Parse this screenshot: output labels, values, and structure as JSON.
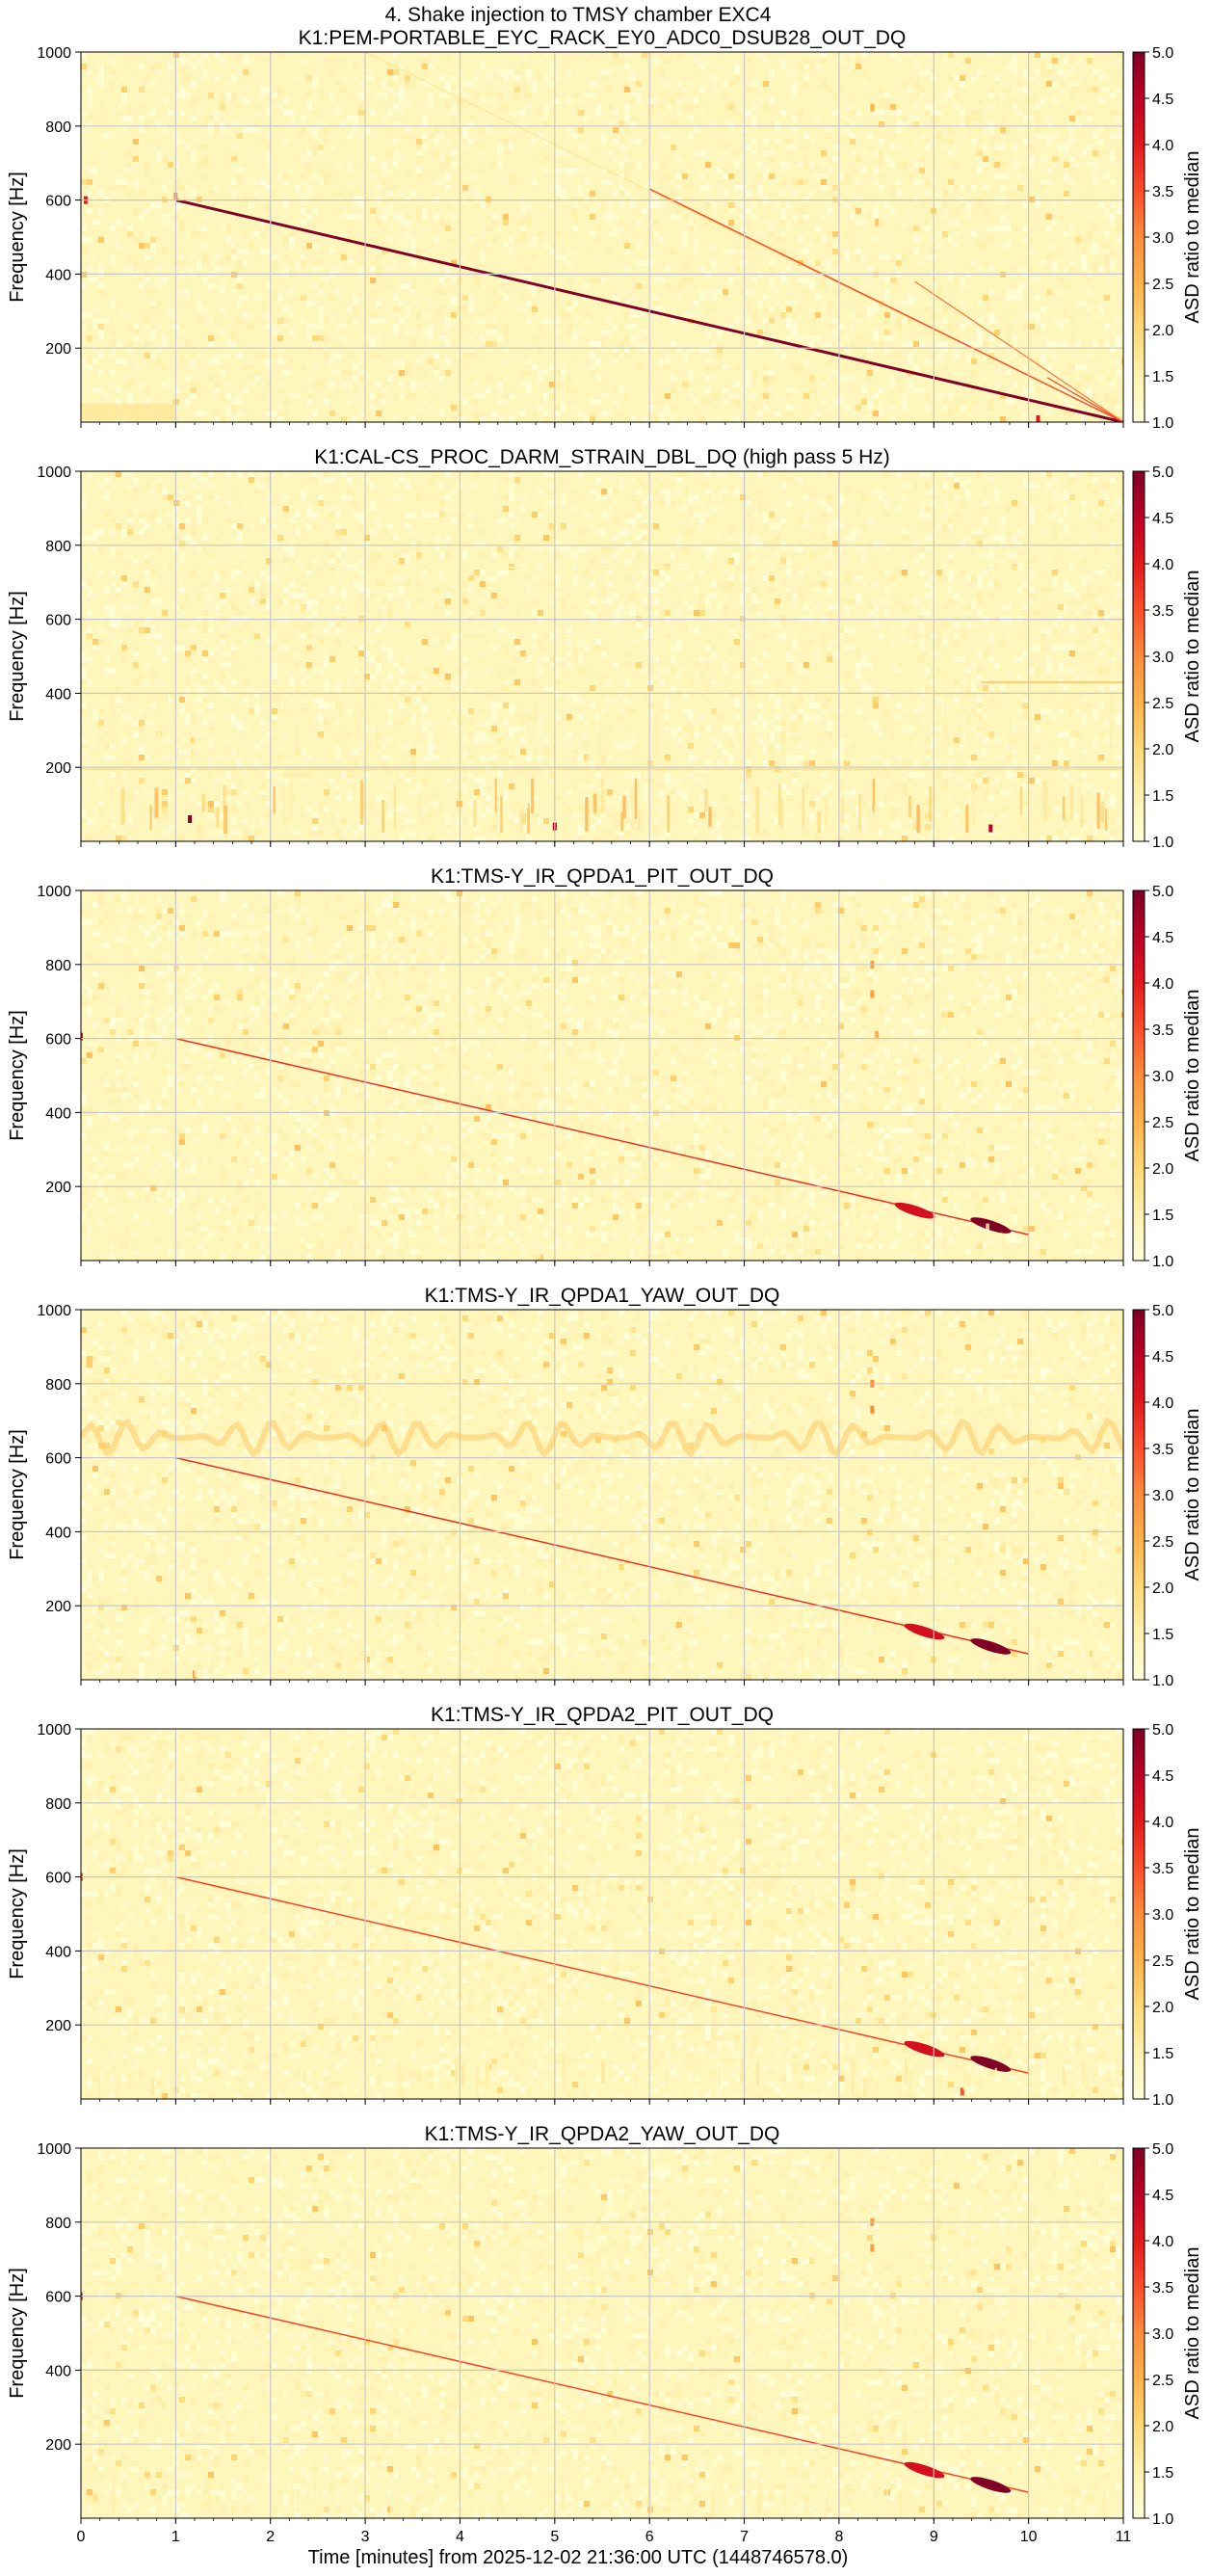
{
  "figure": {
    "suptitle": "4. Shake injection to TMSY chamber EXC4",
    "xlabel": "Time [minutes] from 2025-12-02 21:36:00 UTC (1448746578.0)"
  },
  "chart_data": [
    {
      "type": "heatmap",
      "title": "K1:PEM-PORTABLE_EYC_RACK_EY0_ADC0_DSUB28_OUT_DQ",
      "xlabel": "Time [minutes] from 2025-12-02 21:36:00 UTC (1448746578.0)",
      "ylabel": "Frequency [Hz]",
      "colorbar_label": "ASD ratio to median",
      "xlim": [
        0,
        11
      ],
      "ylim": [
        0,
        1000
      ],
      "clim": [
        1.0,
        5.0
      ],
      "xticks": [
        0,
        1,
        2,
        3,
        4,
        5,
        6,
        7,
        8,
        9,
        10,
        11
      ],
      "yticks": [
        200,
        400,
        600,
        800,
        1000
      ],
      "cticks": [
        "1.0",
        "1.5",
        "2.0",
        "2.5",
        "3.0",
        "3.5",
        "4.0",
        "4.5",
        "5.0"
      ],
      "grid": true,
      "colormap": [
        "#ffffd9",
        "#fff2b0",
        "#fed976",
        "#feb24c",
        "#fd8d3c",
        "#fc4e2a",
        "#e31a1c",
        "#bd0026",
        "#800026"
      ],
      "features": [
        {
          "kind": "sweep",
          "t": [
            1.0,
            11.0
          ],
          "f": [
            600,
            0
          ],
          "intensity": 5.0,
          "width": 3
        },
        {
          "kind": "sweep",
          "t": [
            3.0,
            11.0
          ],
          "f": [
            1000,
            0
          ],
          "intensity": 1.8,
          "width": 1
        },
        {
          "kind": "sweep",
          "t": [
            6.0,
            11.0
          ],
          "f": [
            630,
            0
          ],
          "intensity": 3.5,
          "width": 1.5
        },
        {
          "kind": "sweep",
          "t": [
            8.8,
            11.0
          ],
          "f": [
            380,
            0
          ],
          "intensity": 3.2,
          "width": 1.2
        },
        {
          "kind": "sweep",
          "t": [
            10.2,
            11.0
          ],
          "f": [
            120,
            0
          ],
          "intensity": 3.5,
          "width": 1.2
        },
        {
          "kind": "band",
          "t": [
            0.0,
            1.0
          ],
          "f": [
            5,
            50
          ],
          "intensity": 1.7
        },
        {
          "kind": "spot",
          "t": 0.05,
          "f": 600,
          "intensity": 4.0
        },
        {
          "kind": "spot",
          "t": 1.0,
          "f": 610,
          "intensity": 3.0
        },
        {
          "kind": "spot",
          "t": 8.35,
          "f": 850,
          "intensity": 2.5
        },
        {
          "kind": "spot",
          "t": 8.4,
          "f": 540,
          "intensity": 2.2
        },
        {
          "kind": "spot",
          "t": 10.1,
          "f": 8,
          "intensity": 4.0
        }
      ]
    },
    {
      "type": "heatmap",
      "title": "K1:CAL-CS_PROC_DARM_STRAIN_DBL_DQ (high pass 5 Hz)",
      "xlabel": "Time [minutes] from 2025-12-02 21:36:00 UTC (1448746578.0)",
      "ylabel": "Frequency [Hz]",
      "colorbar_label": "ASD ratio to median",
      "xlim": [
        0,
        11
      ],
      "ylim": [
        0,
        1000
      ],
      "clim": [
        1.0,
        5.0
      ],
      "xticks": [
        0,
        1,
        2,
        3,
        4,
        5,
        6,
        7,
        8,
        9,
        10,
        11
      ],
      "yticks": [
        200,
        400,
        600,
        800,
        1000
      ],
      "cticks": [
        "1.0",
        "1.5",
        "2.0",
        "2.5",
        "3.0",
        "3.5",
        "4.0",
        "4.5",
        "5.0"
      ],
      "grid": true,
      "colormap": [
        "#ffffd9",
        "#fff2b0",
        "#fed976",
        "#feb24c",
        "#fd8d3c",
        "#fc4e2a",
        "#e31a1c",
        "#bd0026",
        "#800026"
      ],
      "features": [
        {
          "kind": "hline",
          "t": [
            0.0,
            11.0
          ],
          "f": 195,
          "intensity": 1.9
        },
        {
          "kind": "hline",
          "t": [
            0.0,
            11.0
          ],
          "f": 400,
          "intensity": 1.6
        },
        {
          "kind": "hline",
          "t": [
            0.0,
            11.0
          ],
          "f": 740,
          "intensity": 1.4
        },
        {
          "kind": "hline",
          "t": [
            9.5,
            11.0
          ],
          "f": 430,
          "intensity": 2.3
        },
        {
          "kind": "stripes",
          "t": [
            0.0,
            11.0
          ],
          "f": [
            20,
            170
          ],
          "intensity": 2.6,
          "count": 70
        },
        {
          "kind": "stripes",
          "t": [
            0.0,
            11.0
          ],
          "f": [
            200,
            400
          ],
          "intensity": 1.5,
          "count": 40
        },
        {
          "kind": "spot",
          "t": 1.15,
          "f": 60,
          "intensity": 5.0
        },
        {
          "kind": "spot",
          "t": 5.0,
          "f": 40,
          "intensity": 4.5
        },
        {
          "kind": "spot",
          "t": 9.6,
          "f": 35,
          "intensity": 4.5
        }
      ]
    },
    {
      "type": "heatmap",
      "title": "K1:TMS-Y_IR_QPDA1_PIT_OUT_DQ",
      "xlabel": "Time [minutes] from 2025-12-02 21:36:00 UTC (1448746578.0)",
      "ylabel": "Frequency [Hz]",
      "colorbar_label": "ASD ratio to median",
      "xlim": [
        0,
        11
      ],
      "ylim": [
        0,
        1000
      ],
      "clim": [
        1.0,
        5.0
      ],
      "xticks": [
        0,
        1,
        2,
        3,
        4,
        5,
        6,
        7,
        8,
        9,
        10,
        11
      ],
      "yticks": [
        200,
        400,
        600,
        800,
        1000
      ],
      "cticks": [
        "1.0",
        "1.5",
        "2.0",
        "2.5",
        "3.0",
        "3.5",
        "4.0",
        "4.5",
        "5.0"
      ],
      "grid": true,
      "colormap": [
        "#ffffd9",
        "#fff2b0",
        "#fed976",
        "#feb24c",
        "#fd8d3c",
        "#fc4e2a",
        "#e31a1c",
        "#bd0026",
        "#800026"
      ],
      "features": [
        {
          "kind": "sweep",
          "t": [
            1.0,
            10.0
          ],
          "f": [
            600,
            70
          ],
          "intensity": 3.8,
          "width": 1.5
        },
        {
          "kind": "blob",
          "t": 9.6,
          "f": 95,
          "intensity": 5.0
        },
        {
          "kind": "blob",
          "t": 8.8,
          "f": 135,
          "intensity": 4.2
        },
        {
          "kind": "spot",
          "t": 0.0,
          "f": 605,
          "intensity": 4.0
        },
        {
          "kind": "spot",
          "t": 8.35,
          "f": 800,
          "intensity": 2.8
        },
        {
          "kind": "spot",
          "t": 8.35,
          "f": 720,
          "intensity": 2.8
        },
        {
          "kind": "spot",
          "t": 8.4,
          "f": 610,
          "intensity": 2.5
        },
        {
          "kind": "stripes",
          "t": [
            0.0,
            11.0
          ],
          "f": [
            0,
            100
          ],
          "intensity": 1.5,
          "count": 40
        }
      ]
    },
    {
      "type": "heatmap",
      "title": "K1:TMS-Y_IR_QPDA1_YAW_OUT_DQ",
      "xlabel": "Time [minutes] from 2025-12-02 21:36:00 UTC (1448746578.0)",
      "ylabel": "Frequency [Hz]",
      "colorbar_label": "ASD ratio to median",
      "xlim": [
        0,
        11
      ],
      "ylim": [
        0,
        1000
      ],
      "clim": [
        1.0,
        5.0
      ],
      "xticks": [
        0,
        1,
        2,
        3,
        4,
        5,
        6,
        7,
        8,
        9,
        10,
        11
      ],
      "yticks": [
        200,
        400,
        600,
        800,
        1000
      ],
      "cticks": [
        "1.0",
        "1.5",
        "2.0",
        "2.5",
        "3.0",
        "3.5",
        "4.0",
        "4.5",
        "5.0"
      ],
      "grid": true,
      "colormap": [
        "#ffffd9",
        "#fff2b0",
        "#fed976",
        "#feb24c",
        "#fd8d3c",
        "#fc4e2a",
        "#e31a1c",
        "#bd0026",
        "#800026"
      ],
      "features": [
        {
          "kind": "sweep",
          "t": [
            1.0,
            10.0
          ],
          "f": [
            600,
            70
          ],
          "intensity": 3.8,
          "width": 1.5
        },
        {
          "kind": "wave",
          "t": [
            0.0,
            11.0
          ],
          "f": [
            610,
            700
          ],
          "intensity": 2.2
        },
        {
          "kind": "blob",
          "t": 9.6,
          "f": 90,
          "intensity": 5.0
        },
        {
          "kind": "blob",
          "t": 8.9,
          "f": 130,
          "intensity": 4.2
        },
        {
          "kind": "spot",
          "t": 8.35,
          "f": 800,
          "intensity": 3.0
        },
        {
          "kind": "spot",
          "t": 8.35,
          "f": 730,
          "intensity": 3.0
        },
        {
          "kind": "spot",
          "t": 1.2,
          "f": 15,
          "intensity": 3.0
        },
        {
          "kind": "stripes",
          "t": [
            0.0,
            11.0
          ],
          "f": [
            0,
            100
          ],
          "intensity": 1.5,
          "count": 40
        }
      ]
    },
    {
      "type": "heatmap",
      "title": "K1:TMS-Y_IR_QPDA2_PIT_OUT_DQ",
      "xlabel": "Time [minutes] from 2025-12-02 21:36:00 UTC (1448746578.0)",
      "ylabel": "Frequency [Hz]",
      "colorbar_label": "ASD ratio to median",
      "xlim": [
        0,
        11
      ],
      "ylim": [
        0,
        1000
      ],
      "clim": [
        1.0,
        5.0
      ],
      "xticks": [
        0,
        1,
        2,
        3,
        4,
        5,
        6,
        7,
        8,
        9,
        10,
        11
      ],
      "yticks": [
        200,
        400,
        600,
        800,
        1000
      ],
      "cticks": [
        "1.0",
        "1.5",
        "2.0",
        "2.5",
        "3.0",
        "3.5",
        "4.0",
        "4.5",
        "5.0"
      ],
      "grid": true,
      "colormap": [
        "#ffffd9",
        "#fff2b0",
        "#fed976",
        "#feb24c",
        "#fd8d3c",
        "#fc4e2a",
        "#e31a1c",
        "#bd0026",
        "#800026"
      ],
      "features": [
        {
          "kind": "sweep",
          "t": [
            1.0,
            10.0
          ],
          "f": [
            600,
            70
          ],
          "intensity": 3.6,
          "width": 1.5
        },
        {
          "kind": "blob",
          "t": 9.6,
          "f": 95,
          "intensity": 5.0
        },
        {
          "kind": "blob",
          "t": 8.9,
          "f": 135,
          "intensity": 4.2
        },
        {
          "kind": "spot",
          "t": 0.0,
          "f": 600,
          "intensity": 3.5
        },
        {
          "kind": "spot",
          "t": 9.3,
          "f": 20,
          "intensity": 3.5
        },
        {
          "kind": "stripes",
          "t": [
            0.0,
            11.0
          ],
          "f": [
            0,
            110
          ],
          "intensity": 1.7,
          "count": 45
        }
      ]
    },
    {
      "type": "heatmap",
      "title": "K1:TMS-Y_IR_QPDA2_YAW_OUT_DQ",
      "xlabel": "Time [minutes] from 2025-12-02 21:36:00 UTC (1448746578.0)",
      "ylabel": "Frequency [Hz]",
      "colorbar_label": "ASD ratio to median",
      "xlim": [
        0,
        11
      ],
      "ylim": [
        0,
        1000
      ],
      "clim": [
        1.0,
        5.0
      ],
      "xticks": [
        0,
        1,
        2,
        3,
        4,
        5,
        6,
        7,
        8,
        9,
        10,
        11
      ],
      "yticks": [
        200,
        400,
        600,
        800,
        1000
      ],
      "cticks": [
        "1.0",
        "1.5",
        "2.0",
        "2.5",
        "3.0",
        "3.5",
        "4.0",
        "4.5",
        "5.0"
      ],
      "grid": true,
      "colormap": [
        "#ffffd9",
        "#fff2b0",
        "#fed976",
        "#feb24c",
        "#fd8d3c",
        "#fc4e2a",
        "#e31a1c",
        "#bd0026",
        "#800026"
      ],
      "features": [
        {
          "kind": "sweep",
          "t": [
            1.0,
            10.0
          ],
          "f": [
            600,
            70
          ],
          "intensity": 3.6,
          "width": 1.5
        },
        {
          "kind": "blob",
          "t": 9.6,
          "f": 90,
          "intensity": 5.0
        },
        {
          "kind": "blob",
          "t": 8.9,
          "f": 130,
          "intensity": 4.2
        },
        {
          "kind": "spot",
          "t": 0.0,
          "f": 600,
          "intensity": 3.5
        },
        {
          "kind": "spot",
          "t": 8.35,
          "f": 800,
          "intensity": 2.8
        },
        {
          "kind": "spot",
          "t": 8.35,
          "f": 730,
          "intensity": 2.8
        },
        {
          "kind": "stripes",
          "t": [
            0.0,
            11.0
          ],
          "f": [
            0,
            110
          ],
          "intensity": 1.6,
          "count": 45
        }
      ]
    }
  ]
}
